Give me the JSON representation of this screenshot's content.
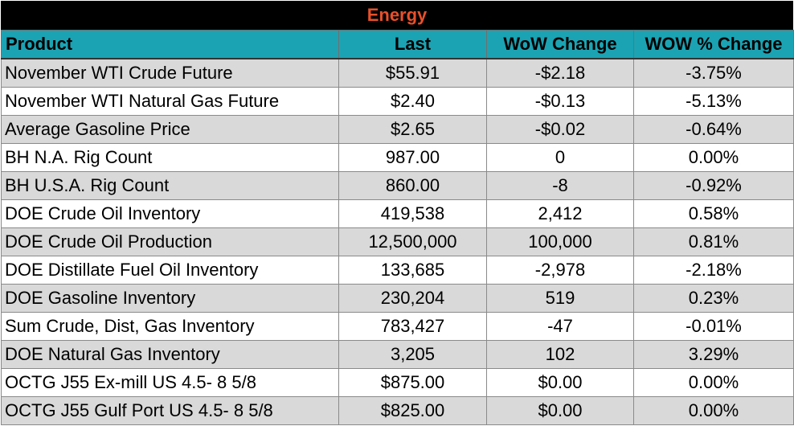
{
  "title": "Energy",
  "colors": {
    "banner_bg": "#000000",
    "banner_text": "#e8502a",
    "header_bg": "#1ba3b3",
    "stripe": "#d9d9d9"
  },
  "headers": [
    "Product",
    "Last",
    "WoW Change",
    "WOW % Change"
  ],
  "rows": [
    [
      "November WTI Crude Future",
      "$55.91",
      "-$2.18",
      "-3.75%"
    ],
    [
      "November WTI Natural Gas Future",
      "$2.40",
      "-$0.13",
      "-5.13%"
    ],
    [
      "Average Gasoline Price",
      "$2.65",
      "-$0.02",
      "-0.64%"
    ],
    [
      "BH N.A. Rig Count",
      "987.00",
      "0",
      "0.00%"
    ],
    [
      "BH U.S.A. Rig Count",
      "860.00",
      "-8",
      "-0.92%"
    ],
    [
      "DOE Crude Oil Inventory",
      "419,538",
      "2,412",
      "0.58%"
    ],
    [
      "DOE Crude Oil Production",
      "12,500,000",
      "100,000",
      "0.81%"
    ],
    [
      "DOE Distillate Fuel Oil Inventory",
      "133,685",
      "-2,978",
      "-2.18%"
    ],
    [
      "DOE Gasoline Inventory",
      "230,204",
      "519",
      "0.23%"
    ],
    [
      "Sum Crude, Dist, Gas Inventory",
      "783,427",
      "-47",
      "-0.01%"
    ],
    [
      "DOE Natural Gas Inventory",
      "3,205",
      "102",
      "3.29%"
    ],
    [
      "OCTG J55 Ex-mill US 4.5- 8 5/8",
      "$875.00",
      "$0.00",
      "0.00%"
    ],
    [
      "OCTG J55 Gulf Port US 4.5- 8 5/8",
      "$825.00",
      "$0.00",
      "0.00%"
    ]
  ]
}
